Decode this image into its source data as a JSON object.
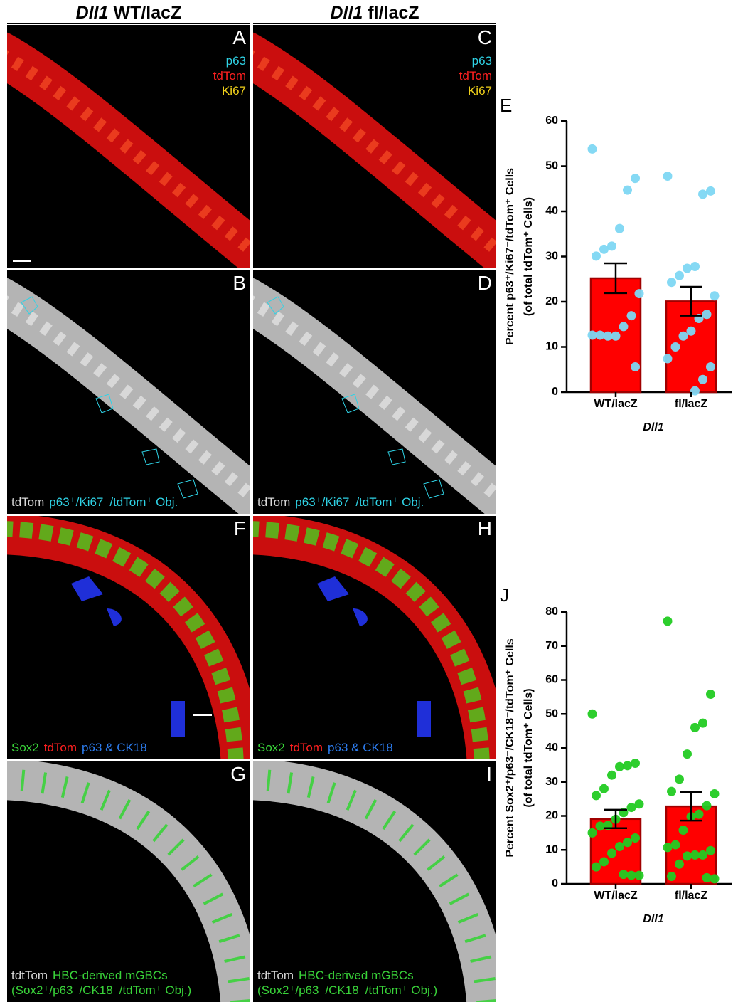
{
  "figure": {
    "column_headers": [
      {
        "gene": "Dll1",
        "genotype": "WT/lacZ"
      },
      {
        "gene": "Dll1",
        "genotype": "fl/lacZ"
      }
    ],
    "panels": [
      {
        "letter": "A",
        "labels": [
          {
            "text": "p63",
            "color": "#2fd3e6"
          },
          {
            "text": "tdTom",
            "color": "#ff2020"
          },
          {
            "text": "Ki67",
            "color": "#f2d21b"
          }
        ]
      },
      {
        "letter": "C",
        "labels": [
          {
            "text": "p63",
            "color": "#2fd3e6"
          },
          {
            "text": "tdTom",
            "color": "#ff2020"
          },
          {
            "text": "Ki67",
            "color": "#f2d21b"
          }
        ]
      },
      {
        "letter": "B",
        "labels": [
          {
            "text": "tdTom",
            "color": "#d8d8d8"
          },
          {
            "text": "p63⁺/Ki67⁻/tdTom⁺ Obj.",
            "color": "#2fd3e6"
          }
        ]
      },
      {
        "letter": "D",
        "labels": [
          {
            "text": "tdTom",
            "color": "#d8d8d8"
          },
          {
            "text": "p63⁺/Ki67⁻/tdTom⁺ Obj.",
            "color": "#2fd3e6"
          }
        ]
      },
      {
        "letter": "F",
        "labels": [
          {
            "text": "Sox2",
            "color": "#39d339"
          },
          {
            "text": "tdTom",
            "color": "#ff2020"
          },
          {
            "text": "p63 & CK18",
            "color": "#2d7df0"
          }
        ]
      },
      {
        "letter": "H",
        "labels": [
          {
            "text": "Sox2",
            "color": "#39d339"
          },
          {
            "text": "tdTom",
            "color": "#ff2020"
          },
          {
            "text": "p63 & CK18",
            "color": "#2d7df0"
          }
        ]
      },
      {
        "letter": "G",
        "labels": [
          {
            "text": "tdtTom",
            "color": "#d8d8d8"
          },
          {
            "text": "HBC-derived mGBCs",
            "color": "#39d339"
          },
          {
            "text": "(Sox2⁺/p63⁻/CK18⁻/tdTom⁺ Obj.)",
            "color": "#39d339"
          }
        ]
      },
      {
        "letter": "I",
        "labels": [
          {
            "text": "tdtTom",
            "color": "#d8d8d8"
          },
          {
            "text": "HBC-derived mGBCs",
            "color": "#39d339"
          },
          {
            "text": "(Sox2⁺/p63⁻/CK18⁻/tdTom⁺ Obj.)",
            "color": "#39d339"
          }
        ]
      }
    ]
  },
  "chart_data": [
    {
      "type": "bar",
      "letter": "E",
      "y_label": [
        "Percent p63⁺/Ki67⁻/tdTom⁺ Cells",
        "(of total tdTom⁺ Cells)"
      ],
      "x_label": "Dll1",
      "categories": [
        "WT/lacZ",
        "fl/lacZ"
      ],
      "values": [
        25.2,
        20.1
      ],
      "errors": [
        3.3,
        3.2
      ],
      "points": [
        [
          53.8,
          47.3,
          44.7,
          36.2,
          32.3,
          31.6,
          30.1,
          21.8,
          16.9,
          14.5,
          12.4,
          12.4,
          12.6,
          12.6,
          5.6
        ],
        [
          47.8,
          44.5,
          43.8,
          27.8,
          27.4,
          25.8,
          24.3,
          21.3,
          17.2,
          16.3,
          13.5,
          12.4,
          10,
          7.4,
          5.6,
          2.8,
          0.3
        ]
      ],
      "color": "#ff0000",
      "point_color": "#7fd8f4",
      "ylim": [
        0,
        60
      ],
      "yticks": [
        0,
        10,
        20,
        30,
        40,
        50,
        60
      ]
    },
    {
      "type": "bar",
      "letter": "J",
      "y_label": [
        "Percent Sox2⁺/p63⁻/CK18⁻/tdTom⁺ Cells",
        "(of total tdTom⁺ Cells)"
      ],
      "x_label": "Dll1",
      "categories": [
        "WT/lacZ",
        "fl/lacZ"
      ],
      "values": [
        19.1,
        22.8
      ],
      "errors": [
        2.7,
        4.2
      ],
      "points": [
        [
          50,
          35.5,
          34.8,
          34.5,
          32,
          28,
          26,
          23.5,
          22.5,
          21,
          19,
          17.2,
          17,
          15,
          13.5,
          12.2,
          11,
          9,
          6.5,
          5,
          2.5,
          2.5,
          2.8
        ],
        [
          77.3,
          55.8,
          47.3,
          46,
          38.2,
          30.8,
          27.2,
          26.5,
          23,
          20.5,
          19.8,
          15.8,
          11.5,
          10.7,
          9.8,
          8.5,
          8.5,
          8.2,
          5.8,
          2.2,
          1.5,
          1.8
        ]
      ],
      "color": "#ff0000",
      "point_color": "#22cc22",
      "ylim": [
        0,
        80
      ],
      "yticks": [
        0,
        10,
        20,
        30,
        40,
        50,
        60,
        70,
        80
      ]
    }
  ]
}
